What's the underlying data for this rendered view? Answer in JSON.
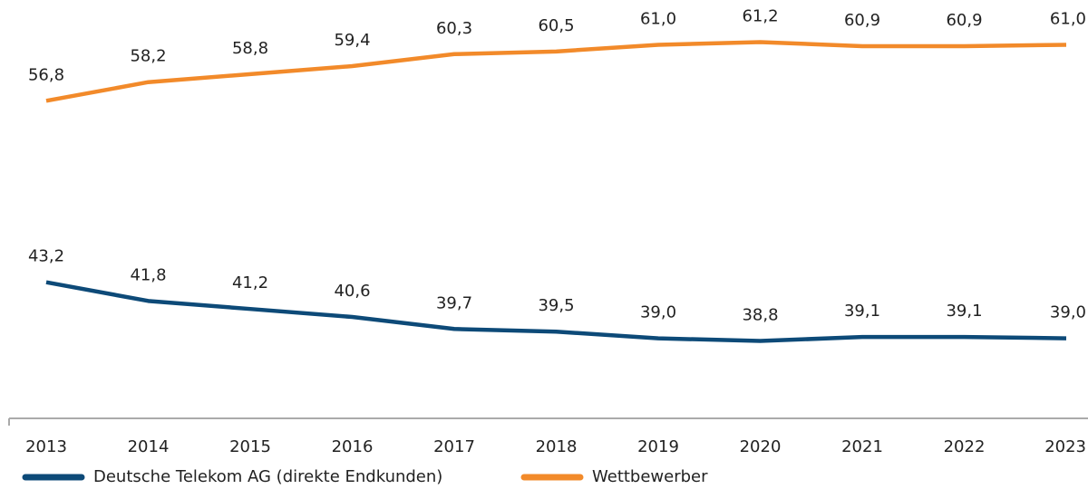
{
  "chart_data": {
    "type": "line",
    "categories": [
      "2013",
      "2014",
      "2015",
      "2016",
      "2017",
      "2018",
      "2019",
      "2020",
      "2021",
      "2022",
      "2023"
    ],
    "series": [
      {
        "name": "Deutsche Telekom AG (direkte Endkunden)",
        "color": "#0d4a78",
        "values": [
          43.2,
          41.8,
          41.2,
          40.6,
          39.7,
          39.5,
          39.0,
          38.8,
          39.1,
          39.1,
          39.0
        ],
        "value_labels": [
          "43,2",
          "41,8",
          "41,2",
          "40,6",
          "39,7",
          "39,5",
          "39,0",
          "38,8",
          "39,1",
          "39,1",
          "39,0"
        ]
      },
      {
        "name": "Wettbewerber",
        "color": "#f28a2a",
        "values": [
          56.8,
          58.2,
          58.8,
          59.4,
          60.3,
          60.5,
          61.0,
          61.2,
          60.9,
          60.9,
          61.0
        ],
        "value_labels": [
          "56,8",
          "58,2",
          "58,8",
          "59,4",
          "60,3",
          "60,5",
          "61,0",
          "61,2",
          "60,9",
          "60,9",
          "61,0"
        ]
      }
    ],
    "ylim": [
      33,
      63
    ],
    "legend": "bottom"
  }
}
